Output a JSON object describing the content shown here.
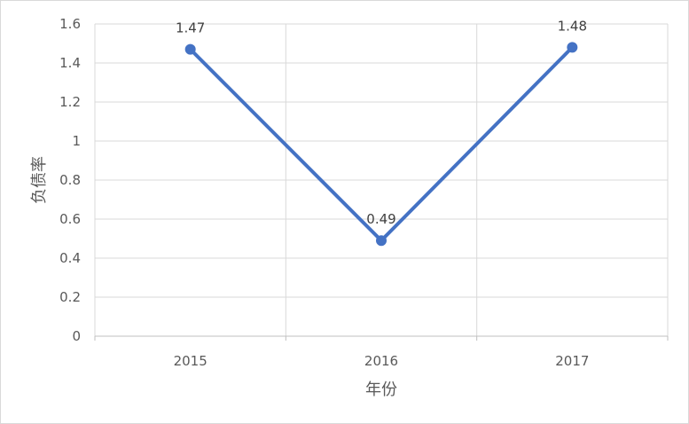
{
  "chart_data": {
    "type": "line",
    "categories": [
      "2015",
      "2016",
      "2017"
    ],
    "series": [
      {
        "values": [
          1.47,
          0.49,
          1.48
        ],
        "data_labels": [
          "1.47",
          "0.49",
          "1.48"
        ],
        "color": "#4472c4"
      }
    ],
    "title": "",
    "xlabel": "年份",
    "ylabel": "负债率",
    "ylim": [
      0,
      1.6
    ],
    "yticks": [
      0,
      0.2,
      0.4,
      0.6,
      0.8,
      1,
      1.2,
      1.4,
      1.6
    ],
    "ytick_labels": [
      "0",
      "0.2",
      "0.4",
      "0.6",
      "0.8",
      "1",
      "1.2",
      "1.4",
      "1.6"
    ],
    "grid": true,
    "legend": "none",
    "gridline_color": "#d9d9d9",
    "axis_color": "#bfbfbf"
  }
}
